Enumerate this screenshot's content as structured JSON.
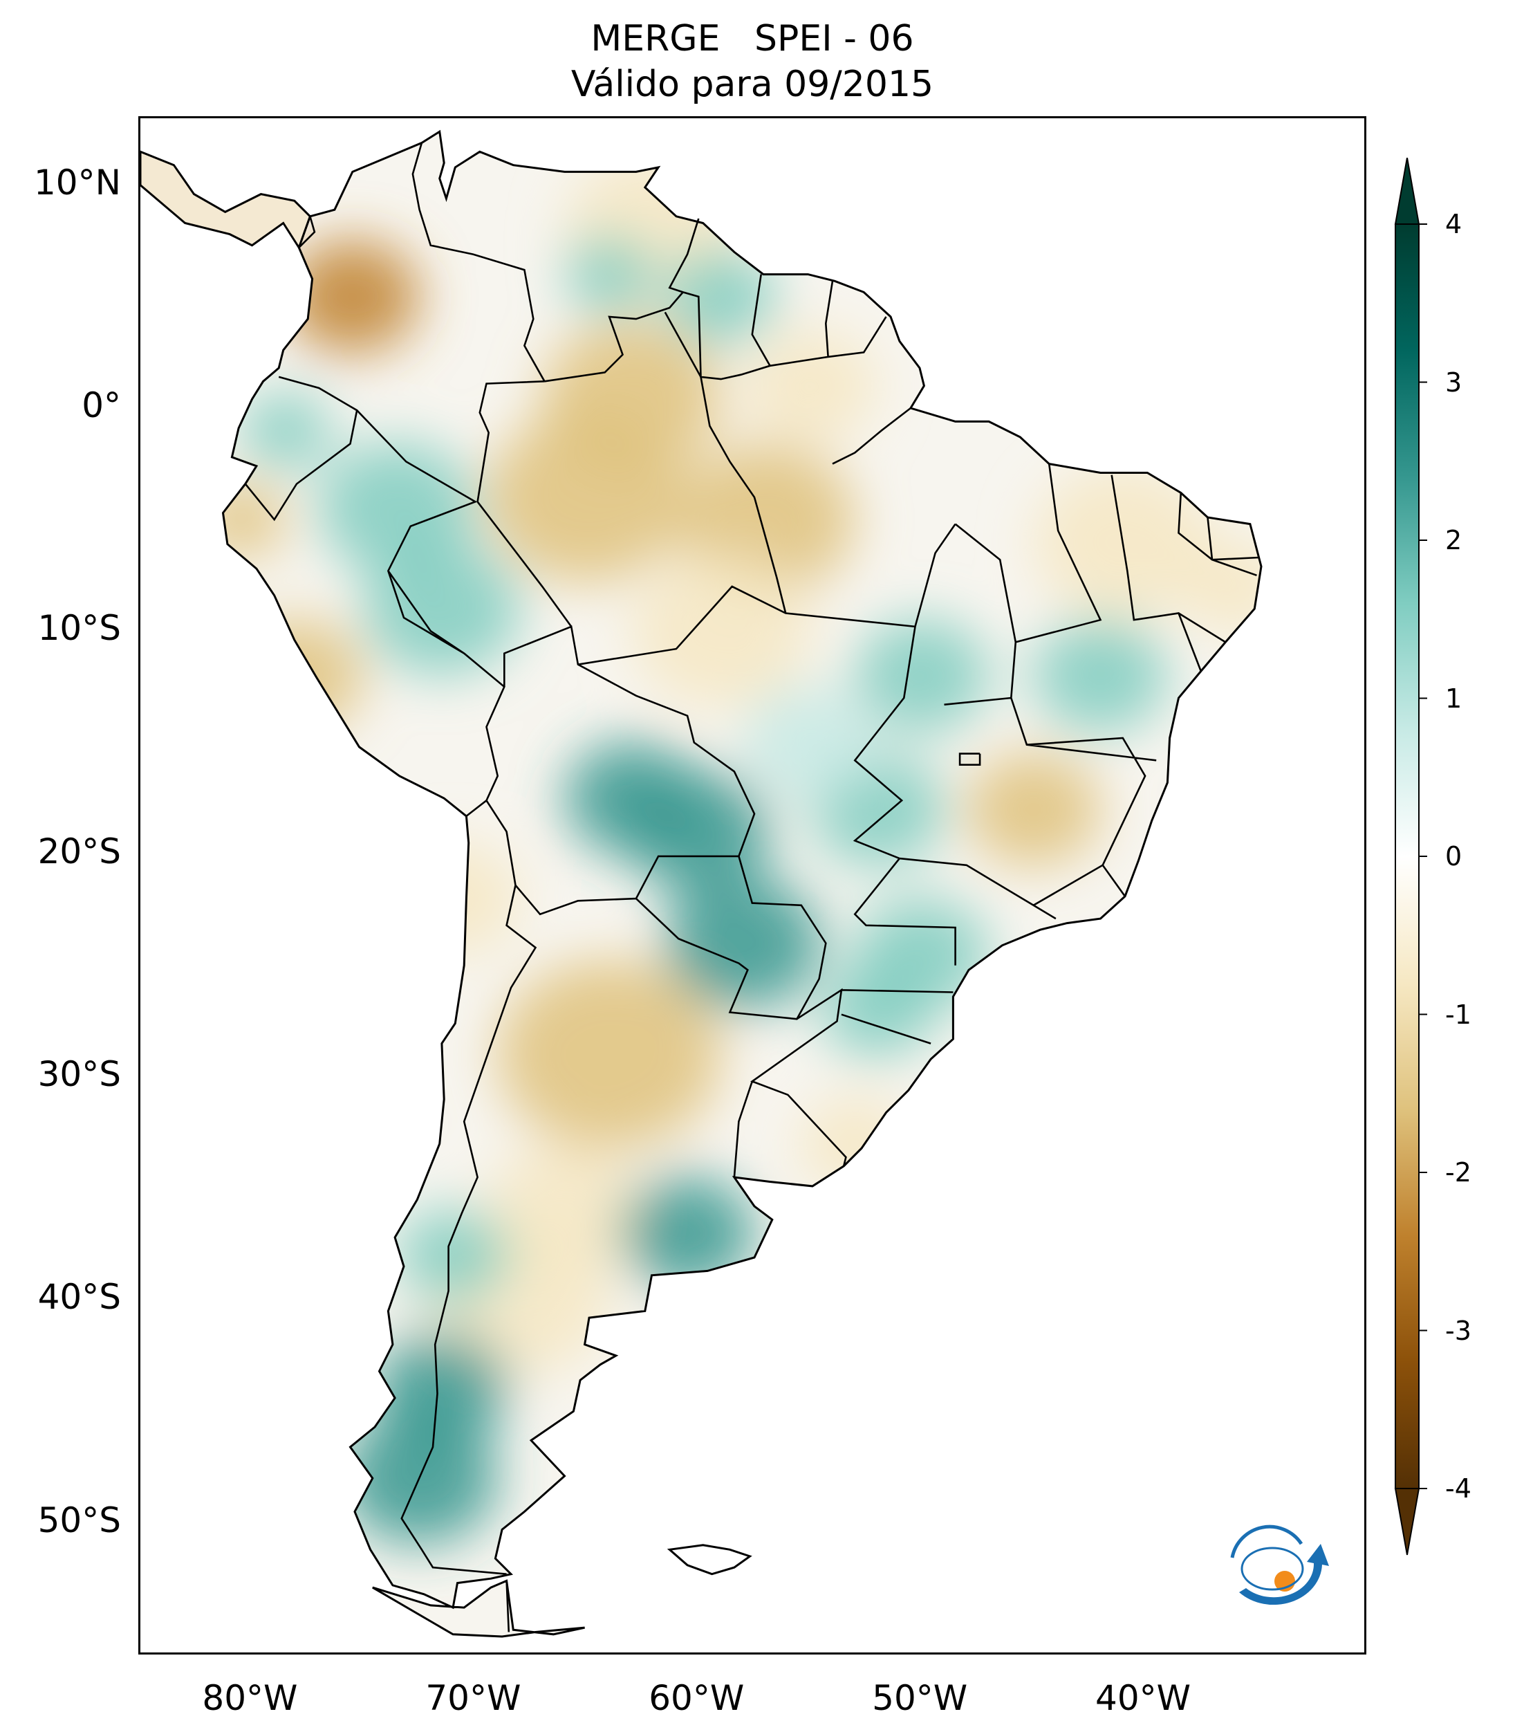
{
  "title": {
    "line1": "MERGE   SPEI - 06",
    "line2": "Válido para 09/2015"
  },
  "map": {
    "region": "South America",
    "lon_range": [
      -85,
      -30
    ],
    "lat_range": [
      -56,
      13
    ],
    "lat_ticks": [
      {
        "value": 10,
        "label": "10°N"
      },
      {
        "value": 0,
        "label": "0°"
      },
      {
        "value": -10,
        "label": "10°S"
      },
      {
        "value": -20,
        "label": "20°S"
      },
      {
        "value": -30,
        "label": "30°S"
      },
      {
        "value": -40,
        "label": "40°S"
      },
      {
        "value": -50,
        "label": "50°S"
      }
    ],
    "lon_ticks": [
      {
        "value": -80,
        "label": "80°W"
      },
      {
        "value": -70,
        "label": "70°W"
      },
      {
        "value": -60,
        "label": "60°W"
      },
      {
        "value": -50,
        "label": "50°W"
      },
      {
        "value": -40,
        "label": "40°W"
      }
    ],
    "anomalies": [
      {
        "lon": -75.5,
        "lat": 5,
        "value": -2.4,
        "r": 3
      },
      {
        "lon": -63,
        "lat": 0.5,
        "value": -1.8,
        "r": 4
      },
      {
        "lon": -65,
        "lat": -4,
        "value": -1.5,
        "r": 4.5
      },
      {
        "lon": -57,
        "lat": -5,
        "value": -1.6,
        "r": 4
      },
      {
        "lon": -62,
        "lat": 8,
        "value": -1.2,
        "r": 4
      },
      {
        "lon": -55,
        "lat": 1,
        "value": -1.0,
        "r": 3
      },
      {
        "lon": -41,
        "lat": -6,
        "value": -1.2,
        "r": 4
      },
      {
        "lon": -36,
        "lat": -8,
        "value": -1.0,
        "r": 2.5
      },
      {
        "lon": -45,
        "lat": -18,
        "value": -1.3,
        "r": 3
      },
      {
        "lon": -64,
        "lat": -29,
        "value": -1.4,
        "r": 5
      },
      {
        "lon": -66,
        "lat": -36,
        "value": -1.0,
        "r": 3.5
      },
      {
        "lon": -68,
        "lat": -40,
        "value": -0.9,
        "r": 4
      },
      {
        "lon": -78,
        "lat": -12,
        "value": -1.4,
        "r": 3
      },
      {
        "lon": -80.5,
        "lat": -5,
        "value": -1.6,
        "r": 2
      },
      {
        "lon": -71,
        "lat": -22,
        "value": -1.0,
        "r": 3
      },
      {
        "lon": -53,
        "lat": -33,
        "value": -0.8,
        "r": 2.5
      },
      {
        "lon": -59,
        "lat": -10,
        "value": -0.8,
        "r": 4
      },
      {
        "lon": -73.5,
        "lat": -4.5,
        "value": 1.6,
        "r": 3.5
      },
      {
        "lon": -78.5,
        "lat": -1,
        "value": 1.8,
        "r": 2
      },
      {
        "lon": -71.5,
        "lat": -9,
        "value": 1.4,
        "r": 3.5
      },
      {
        "lon": -60,
        "lat": -19,
        "value": 2.5,
        "r": 3.2
      },
      {
        "lon": -63,
        "lat": -17.5,
        "value": 2.0,
        "r": 3
      },
      {
        "lon": -58,
        "lat": -24,
        "value": 2.0,
        "r": 3.5
      },
      {
        "lon": -50,
        "lat": -24.5,
        "value": 1.6,
        "r": 3
      },
      {
        "lon": -52,
        "lat": -18,
        "value": 1.6,
        "r": 3
      },
      {
        "lon": -50,
        "lat": -12,
        "value": 1.5,
        "r": 3
      },
      {
        "lon": -42,
        "lat": -12,
        "value": 1.5,
        "r": 3
      },
      {
        "lon": -60.5,
        "lat": -37,
        "value": 2.0,
        "r": 3
      },
      {
        "lon": -71.5,
        "lat": -44,
        "value": 2.4,
        "r": 3
      },
      {
        "lon": -72.5,
        "lat": -48,
        "value": 2.2,
        "r": 3.5
      },
      {
        "lon": -71,
        "lat": -38,
        "value": 1.8,
        "r": 2.5
      },
      {
        "lon": -64,
        "lat": 6,
        "value": 1.4,
        "r": 2
      },
      {
        "lon": -59,
        "lat": 5,
        "value": 1.2,
        "r": 2.5
      },
      {
        "lon": -52,
        "lat": -27,
        "value": 1.3,
        "r": 2.5
      },
      {
        "lon": -55,
        "lat": -15,
        "value": 1.0,
        "r": 3
      }
    ]
  },
  "colorbar": {
    "vmin": -4,
    "vmax": 4,
    "extend": "both",
    "ticks": [
      {
        "value": 4,
        "label": "4"
      },
      {
        "value": 3,
        "label": "3"
      },
      {
        "value": 2,
        "label": "2"
      },
      {
        "value": 1,
        "label": "1"
      },
      {
        "value": 0,
        "label": "0"
      },
      {
        "value": -1,
        "label": "-1"
      },
      {
        "value": -2,
        "label": "-2"
      },
      {
        "value": -3,
        "label": "-3"
      },
      {
        "value": -4,
        "label": "-4"
      }
    ],
    "colors": [
      "#543005",
      "#8c510a",
      "#bf812d",
      "#dfc27d",
      "#f6e8c3",
      "#ffffff",
      "#c7eae5",
      "#80cdc1",
      "#35978f",
      "#01665e",
      "#003c30"
    ]
  },
  "logo": {
    "text": "INPE",
    "colors": {
      "ring": "#1a6fb3",
      "dot": "#f28c1b"
    }
  }
}
